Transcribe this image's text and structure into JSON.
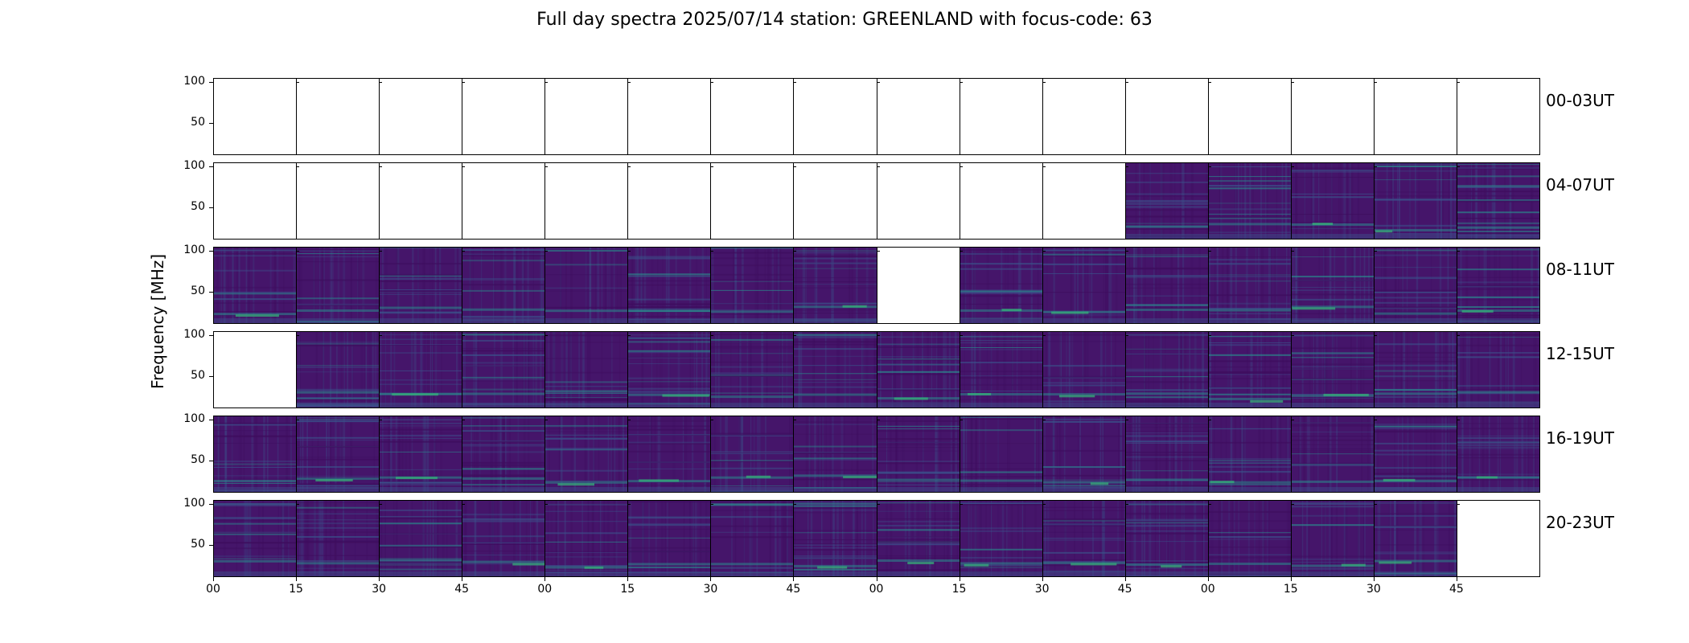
{
  "title": "Full day spectra 2025/07/14 station: GREENLAND with focus-code: 63",
  "chart_data": {
    "type": "heatmap",
    "title": "Full day spectra 2025/07/14 station: GREENLAND with focus-code: 63",
    "ylabel": "Frequency [MHz]",
    "xlabel": "",
    "y_tick_labels": [
      "100",
      "50"
    ],
    "ylim": [
      10,
      105
    ],
    "x_tick_labels": [
      "00",
      "15",
      "30",
      "45",
      "00",
      "15",
      "30",
      "45",
      "00",
      "15",
      "30",
      "45",
      "00",
      "15",
      "30",
      "45"
    ],
    "colormap": "viridis",
    "rows": [
      {
        "label": "00-03UT",
        "available": [
          0,
          0,
          0,
          0,
          0,
          0,
          0,
          0,
          0,
          0,
          0,
          0,
          0,
          0,
          0,
          0
        ]
      },
      {
        "label": "04-07UT",
        "available": [
          0,
          0,
          0,
          0,
          0,
          0,
          0,
          0,
          0,
          0,
          0,
          1,
          1,
          1,
          1,
          1
        ]
      },
      {
        "label": "08-11UT",
        "available": [
          1,
          1,
          1,
          1,
          1,
          1,
          1,
          1,
          0,
          1,
          1,
          1,
          1,
          1,
          1,
          1
        ]
      },
      {
        "label": "12-15UT",
        "available": [
          0,
          1,
          1,
          1,
          1,
          1,
          1,
          1,
          1,
          1,
          1,
          1,
          1,
          1,
          1,
          1
        ]
      },
      {
        "label": "16-19UT",
        "available": [
          1,
          1,
          1,
          1,
          1,
          1,
          1,
          1,
          1,
          1,
          1,
          1,
          1,
          1,
          1,
          1
        ]
      },
      {
        "label": "20-23UT",
        "available": [
          1,
          1,
          1,
          1,
          1,
          1,
          1,
          1,
          1,
          1,
          1,
          1,
          1,
          1,
          1,
          0
        ]
      }
    ]
  },
  "colors": {
    "background": "#45156a",
    "band_dark": "#3e0d5e",
    "band_mid": "#3b528b",
    "band_teal": "#2a8a8c",
    "band_bright": "#35b779"
  }
}
